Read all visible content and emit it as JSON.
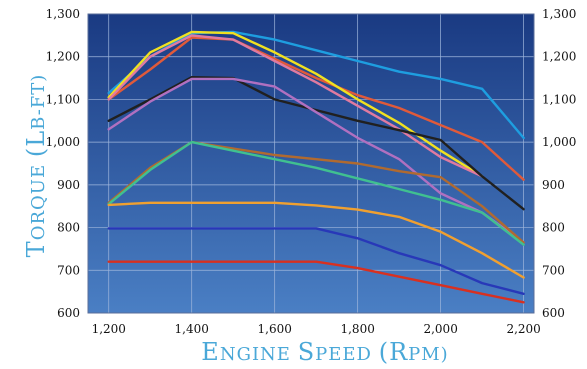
{
  "chart_data": {
    "type": "line",
    "title": "",
    "xlabel": "Engine Speed (RPM)",
    "ylabel": "Torque (lb-ft)",
    "xlim": [
      1150,
      2225
    ],
    "ylim": [
      600,
      1300
    ],
    "x_ticks": [
      1200,
      1400,
      1600,
      1800,
      2000,
      2200
    ],
    "x_tick_labels": [
      "1,200",
      "1,400",
      "1,600",
      "1,800",
      "2,000",
      "2,200"
    ],
    "y_ticks": [
      600,
      700,
      800,
      900,
      1000,
      1100,
      1200,
      1300
    ],
    "y_tick_labels": [
      "600",
      "700",
      "800",
      "900",
      "1,000",
      "1,100",
      "1,200",
      "1,300"
    ],
    "grid": true,
    "legend": "none",
    "plot_background": [
      "#1a3a82",
      "#4a7fc4"
    ],
    "series": [
      {
        "color": "#1e9ee0",
        "points": [
          [
            1200,
            1115
          ],
          [
            1300,
            1200
          ],
          [
            1400,
            1255
          ],
          [
            1500,
            1258
          ],
          [
            1600,
            1240
          ],
          [
            1700,
            1215
          ],
          [
            1800,
            1190
          ],
          [
            1900,
            1165
          ],
          [
            2000,
            1148
          ],
          [
            2100,
            1125
          ],
          [
            2200,
            1010
          ]
        ]
      },
      {
        "color": "#e05a3a",
        "points": [
          [
            1200,
            1100
          ],
          [
            1300,
            1170
          ],
          [
            1400,
            1245
          ],
          [
            1500,
            1240
          ],
          [
            1600,
            1195
          ],
          [
            1700,
            1150
          ],
          [
            1800,
            1110
          ],
          [
            1900,
            1080
          ],
          [
            2000,
            1040
          ],
          [
            2100,
            1000
          ],
          [
            2200,
            912
          ]
        ]
      },
      {
        "color": "#f0e020",
        "points": [
          [
            1200,
            1105
          ],
          [
            1300,
            1210
          ],
          [
            1400,
            1258
          ],
          [
            1500,
            1255
          ],
          [
            1600,
            1210
          ],
          [
            1700,
            1160
          ],
          [
            1800,
            1100
          ],
          [
            1900,
            1045
          ],
          [
            2000,
            980
          ],
          [
            2100,
            920
          ]
        ]
      },
      {
        "color": "#e07aa0",
        "points": [
          [
            1200,
            1100
          ],
          [
            1300,
            1200
          ],
          [
            1400,
            1250
          ],
          [
            1500,
            1240
          ],
          [
            1600,
            1190
          ],
          [
            1700,
            1140
          ],
          [
            1800,
            1085
          ],
          [
            1900,
            1030
          ],
          [
            2000,
            965
          ],
          [
            2100,
            920
          ]
        ]
      },
      {
        "color": "#202020",
        "points": [
          [
            1200,
            1050
          ],
          [
            1300,
            1100
          ],
          [
            1400,
            1152
          ],
          [
            1500,
            1150
          ],
          [
            1600,
            1100
          ],
          [
            1700,
            1075
          ],
          [
            1800,
            1050
          ],
          [
            1900,
            1028
          ],
          [
            2000,
            1005
          ],
          [
            2100,
            920
          ],
          [
            2200,
            843
          ]
        ]
      },
      {
        "color": "#b070c0",
        "points": [
          [
            1200,
            1030
          ],
          [
            1300,
            1095
          ],
          [
            1400,
            1148
          ],
          [
            1500,
            1148
          ],
          [
            1600,
            1130
          ],
          [
            1700,
            1070
          ],
          [
            1800,
            1010
          ],
          [
            1900,
            960
          ],
          [
            2000,
            880
          ],
          [
            2100,
            835
          ],
          [
            2200,
            765
          ]
        ]
      },
      {
        "color": "#b06a30",
        "points": [
          [
            1200,
            858
          ],
          [
            1300,
            940
          ],
          [
            1400,
            1000
          ],
          [
            1500,
            985
          ],
          [
            1600,
            970
          ],
          [
            1700,
            960
          ],
          [
            1800,
            950
          ],
          [
            1900,
            932
          ],
          [
            2000,
            918
          ],
          [
            2100,
            850
          ],
          [
            2200,
            765
          ]
        ]
      },
      {
        "color": "#40c090",
        "points": [
          [
            1200,
            855
          ],
          [
            1300,
            935
          ],
          [
            1400,
            1000
          ],
          [
            1500,
            980
          ],
          [
            1600,
            960
          ],
          [
            1700,
            940
          ],
          [
            1800,
            915
          ],
          [
            1900,
            890
          ],
          [
            2000,
            865
          ],
          [
            2100,
            835
          ],
          [
            2200,
            760
          ]
        ]
      },
      {
        "color": "#f0a030",
        "points": [
          [
            1200,
            853
          ],
          [
            1300,
            858
          ],
          [
            1400,
            858
          ],
          [
            1500,
            858
          ],
          [
            1600,
            858
          ],
          [
            1700,
            852
          ],
          [
            1800,
            842
          ],
          [
            1900,
            825
          ],
          [
            2000,
            790
          ],
          [
            2100,
            740
          ],
          [
            2200,
            683
          ]
        ]
      },
      {
        "color": "#2838b8",
        "points": [
          [
            1200,
            798
          ],
          [
            1300,
            798
          ],
          [
            1400,
            798
          ],
          [
            1500,
            798
          ],
          [
            1600,
            798
          ],
          [
            1700,
            798
          ],
          [
            1800,
            775
          ],
          [
            1900,
            740
          ],
          [
            2000,
            712
          ],
          [
            2100,
            670
          ],
          [
            2200,
            645
          ]
        ]
      },
      {
        "color": "#d83020",
        "points": [
          [
            1200,
            720
          ],
          [
            1300,
            720
          ],
          [
            1400,
            720
          ],
          [
            1500,
            720
          ],
          [
            1600,
            720
          ],
          [
            1700,
            720
          ],
          [
            1800,
            705
          ],
          [
            1900,
            685
          ],
          [
            2000,
            665
          ],
          [
            2100,
            645
          ],
          [
            2200,
            625
          ]
        ]
      }
    ]
  }
}
